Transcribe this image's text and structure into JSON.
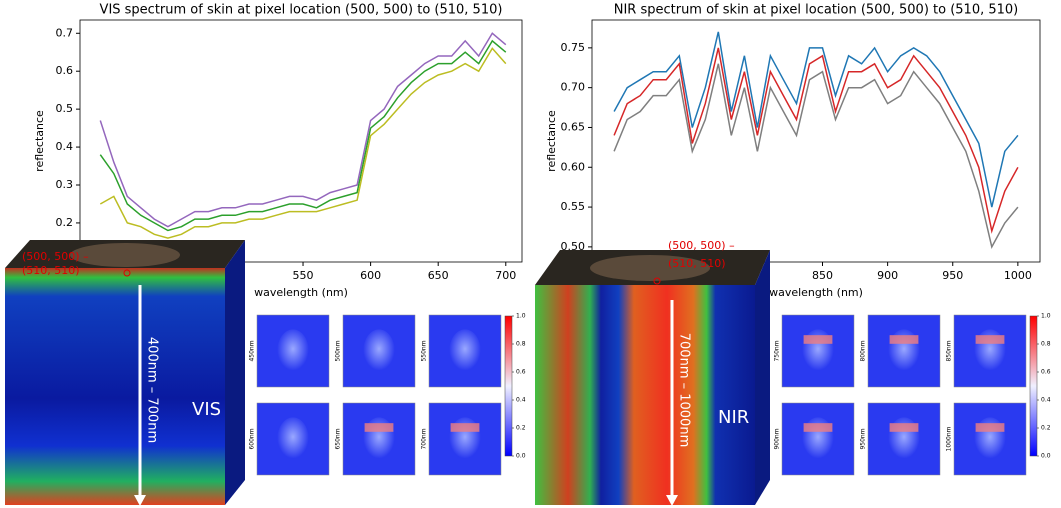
{
  "chart_data": [
    {
      "type": "line",
      "title": "VIS spectrum of skin at pixel location (500, 500) to (510, 510)",
      "xlabel": "wavelength (nm)",
      "ylabel": "reflectance",
      "x": [
        400,
        410,
        420,
        430,
        440,
        450,
        460,
        470,
        480,
        490,
        500,
        510,
        520,
        530,
        540,
        550,
        560,
        570,
        580,
        590,
        600,
        610,
        620,
        630,
        640,
        650,
        660,
        670,
        680,
        690,
        700
      ],
      "series": [
        {
          "color": "#9467bd",
          "values": [
            0.47,
            0.36,
            0.27,
            0.24,
            0.21,
            0.19,
            0.21,
            0.23,
            0.23,
            0.24,
            0.24,
            0.25,
            0.25,
            0.26,
            0.27,
            0.27,
            0.26,
            0.28,
            0.29,
            0.3,
            0.47,
            0.5,
            0.56,
            0.59,
            0.62,
            0.64,
            0.64,
            0.68,
            0.64,
            0.7,
            0.67
          ]
        },
        {
          "color": "#2ca02c",
          "values": [
            0.38,
            0.33,
            0.25,
            0.22,
            0.2,
            0.18,
            0.19,
            0.21,
            0.21,
            0.22,
            0.22,
            0.23,
            0.23,
            0.24,
            0.25,
            0.25,
            0.24,
            0.26,
            0.27,
            0.28,
            0.45,
            0.48,
            0.53,
            0.57,
            0.6,
            0.62,
            0.62,
            0.65,
            0.62,
            0.68,
            0.65
          ]
        },
        {
          "color": "#bcbd22",
          "values": [
            0.25,
            0.27,
            0.2,
            0.19,
            0.17,
            0.16,
            0.17,
            0.19,
            0.19,
            0.2,
            0.2,
            0.21,
            0.21,
            0.22,
            0.23,
            0.23,
            0.23,
            0.24,
            0.25,
            0.26,
            0.43,
            0.46,
            0.5,
            0.54,
            0.57,
            0.59,
            0.6,
            0.62,
            0.6,
            0.66,
            0.62
          ]
        }
      ],
      "xlim": [
        385,
        712
      ],
      "ylim": [
        0.097,
        0.735
      ],
      "xticks": [
        550,
        600,
        650,
        700
      ],
      "yticks": [
        0.2,
        0.3,
        0.4,
        0.5,
        0.6,
        0.7
      ],
      "annotations": {
        "pixel_from": "(500, 500) –",
        "pixel_to": "(510, 510)",
        "band": "400nm – 700nm",
        "modality": "VIS"
      },
      "thumbnail_labels": [
        "450nm",
        "500nm",
        "550nm",
        "600nm",
        "650nm",
        "700nm"
      ],
      "colorbar_ticks": [
        {
          "value": 0,
          "label": "0.0"
        },
        {
          "value": 0.2,
          "label": "0.2"
        },
        {
          "value": 0.4,
          "label": "0.4"
        },
        {
          "value": 0.6,
          "label": "0.6"
        },
        {
          "value": 0.8,
          "label": "0.8"
        },
        {
          "value": 1,
          "label": "1.0"
        }
      ]
    },
    {
      "type": "line",
      "title": "NIR spectrum of skin at pixel location (500, 500) to (510, 510)",
      "xlabel": "wavelength (nm)",
      "ylabel": "reflectance",
      "x": [
        690,
        700,
        710,
        720,
        730,
        740,
        750,
        760,
        770,
        780,
        790,
        800,
        810,
        820,
        830,
        840,
        850,
        860,
        870,
        880,
        890,
        900,
        910,
        920,
        930,
        940,
        950,
        960,
        970,
        980,
        990,
        1000
      ],
      "series": [
        {
          "color": "#1f77b4",
          "values": [
            0.67,
            0.7,
            0.71,
            0.72,
            0.72,
            0.74,
            0.65,
            0.7,
            0.77,
            0.67,
            0.74,
            0.65,
            0.74,
            0.71,
            0.68,
            0.75,
            0.75,
            0.69,
            0.74,
            0.73,
            0.75,
            0.72,
            0.74,
            0.75,
            0.74,
            0.72,
            0.69,
            0.66,
            0.63,
            0.55,
            0.62,
            0.64
          ]
        },
        {
          "color": "#d62728",
          "values": [
            0.64,
            0.68,
            0.69,
            0.71,
            0.71,
            0.73,
            0.63,
            0.68,
            0.75,
            0.66,
            0.72,
            0.64,
            0.72,
            0.69,
            0.66,
            0.73,
            0.74,
            0.67,
            0.72,
            0.72,
            0.73,
            0.7,
            0.71,
            0.74,
            0.72,
            0.7,
            0.67,
            0.64,
            0.6,
            0.52,
            0.57,
            0.6
          ]
        },
        {
          "color": "#7f7f7f",
          "values": [
            0.62,
            0.66,
            0.67,
            0.69,
            0.69,
            0.71,
            0.62,
            0.66,
            0.73,
            0.64,
            0.7,
            0.62,
            0.7,
            0.67,
            0.64,
            0.71,
            0.72,
            0.66,
            0.7,
            0.7,
            0.71,
            0.68,
            0.69,
            0.72,
            0.7,
            0.68,
            0.65,
            0.62,
            0.57,
            0.5,
            0.53,
            0.55
          ]
        }
      ],
      "xlim": [
        673,
        1017
      ],
      "ylim": [
        0.481,
        0.785
      ],
      "xticks": [
        850,
        900,
        950,
        1000
      ],
      "yticks": [
        {
          "value": 0.5,
          "label": "0.50"
        },
        0.55,
        {
          "value": 0.6,
          "label": "0.60"
        },
        0.65,
        {
          "value": 0.7,
          "label": "0.70"
        },
        0.75
      ],
      "annotations": {
        "pixel_from": "(500, 500) –",
        "pixel_to": "(510, 510)",
        "band": "700nm – 1000nm",
        "modality": "NIR"
      },
      "thumbnail_labels": [
        "750nm",
        "800nm",
        "850nm",
        "900nm",
        "950nm",
        "1000nm"
      ],
      "colorbar_ticks": [
        {
          "value": 0,
          "label": "0.0"
        },
        {
          "value": 0.2,
          "label": "0.2"
        },
        {
          "value": 0.4,
          "label": "0.4"
        },
        {
          "value": 0.6,
          "label": "0.6"
        },
        {
          "value": 0.8,
          "label": "0.8"
        },
        {
          "value": 1,
          "label": "1.0"
        }
      ]
    }
  ]
}
